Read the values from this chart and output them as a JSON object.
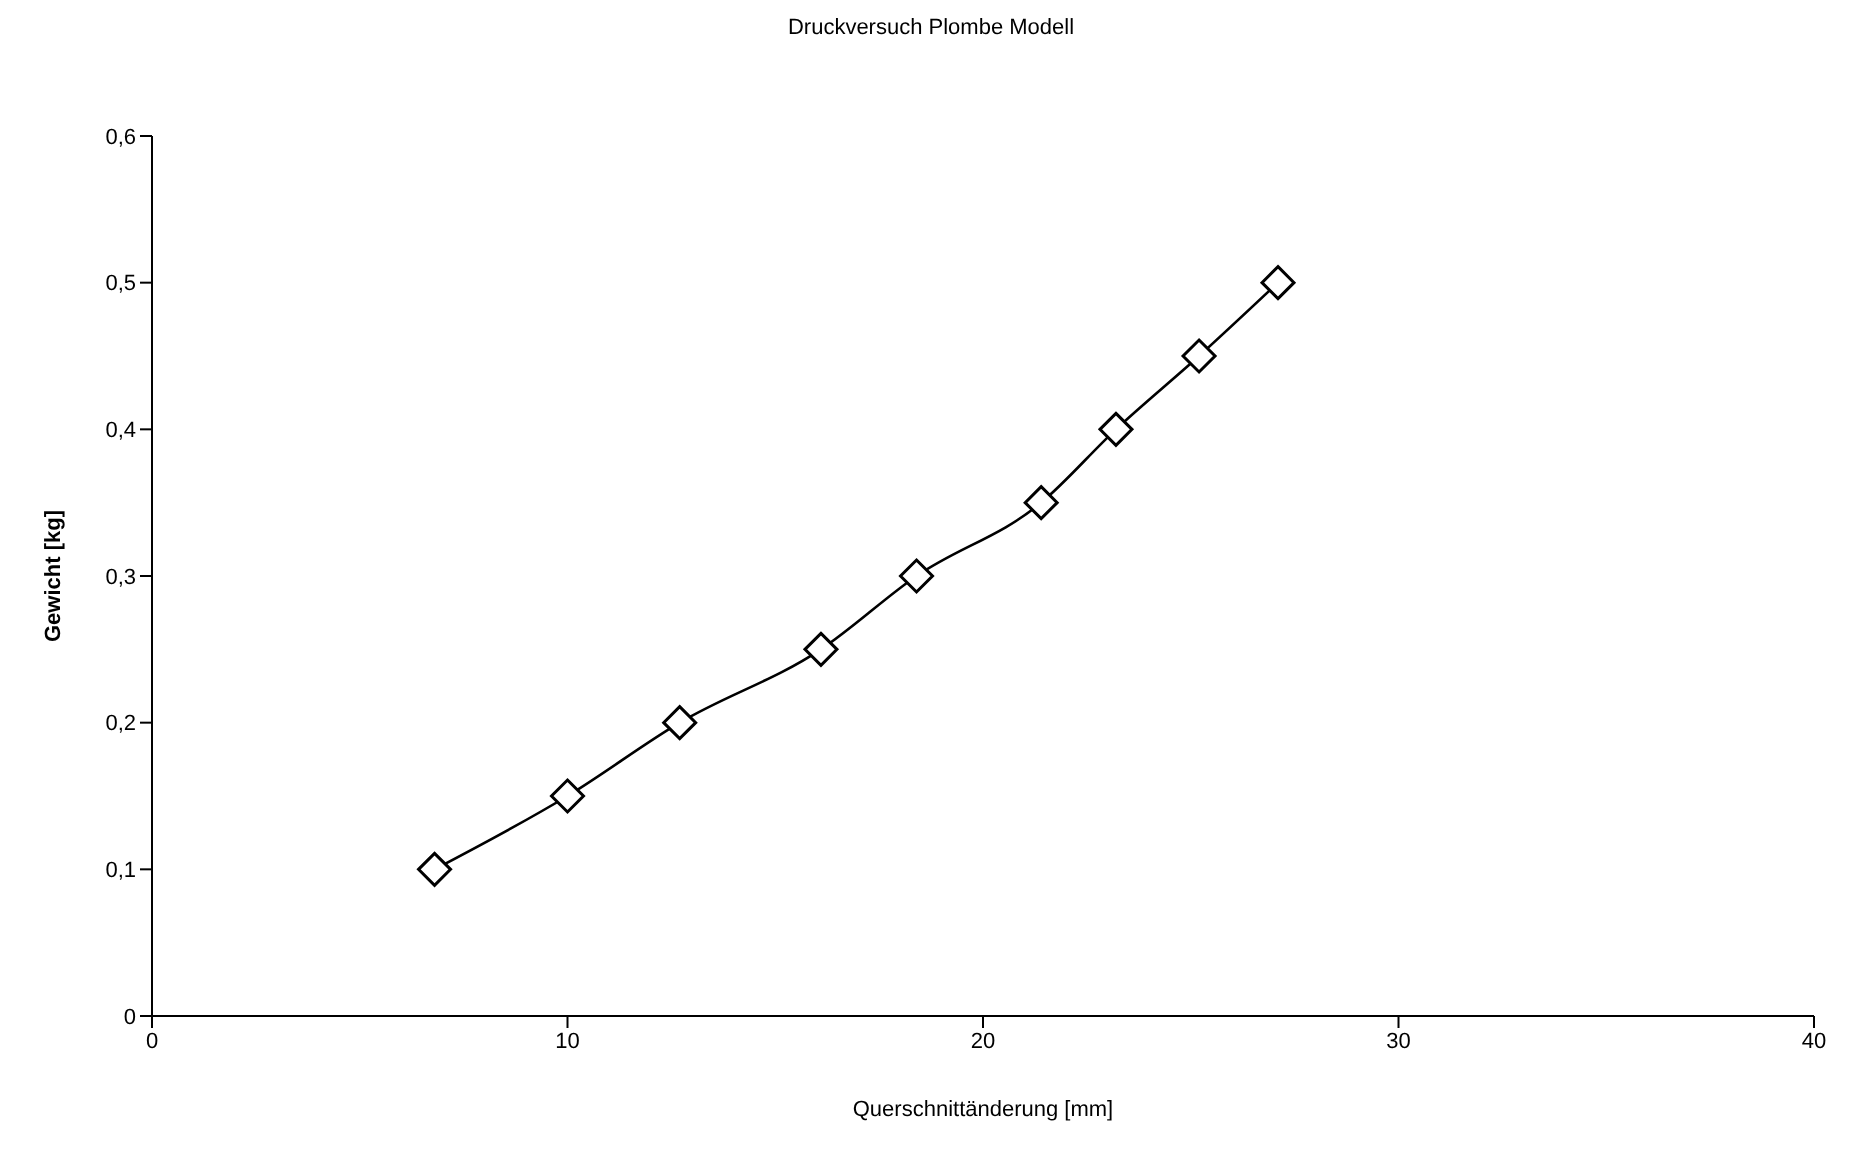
{
  "chart_data": {
    "type": "line",
    "title": "Druckversuch Plombe Modell",
    "xlabel": "Querschnittänderung [mm]",
    "ylabel": "Gewicht [kg]",
    "x": [
      6.8,
      10,
      12.7,
      16.1,
      18.4,
      21.4,
      23.2,
      25.2,
      27.1
    ],
    "series": [
      {
        "color": "#000000",
        "values": [
          0.1,
          0.15,
          0.2,
          0.25,
          0.3,
          0.35,
          0.4,
          0.45,
          0.5
        ]
      }
    ],
    "xlim": [
      0,
      40
    ],
    "xticks": [
      0,
      10,
      20,
      30,
      40
    ],
    "ylim": [
      0,
      0.6
    ],
    "yticks": [
      0,
      {
        "value": 0.1,
        "label": "0,1"
      },
      {
        "value": 0.2,
        "label": "0,2"
      },
      {
        "value": 0.3,
        "label": "0,3"
      },
      {
        "value": 0.4,
        "label": "0,4"
      },
      {
        "value": 0.5,
        "label": "0,5"
      },
      {
        "value": 0.6,
        "label": "0,6"
      }
    ],
    "marker": "diamond",
    "line_style": "solid",
    "grid": false,
    "legend": false
  }
}
